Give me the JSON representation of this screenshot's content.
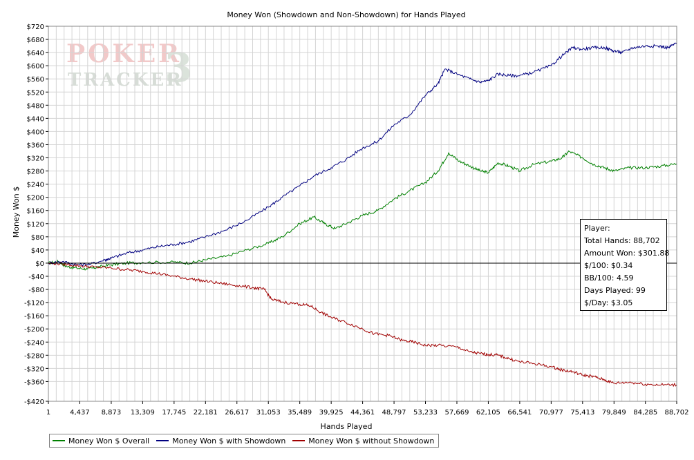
{
  "chart_data": {
    "type": "line",
    "title": "Money Won (Showdown and Non-Showdown) for Hands Played",
    "xlabel": "Hands Played",
    "ylabel": "Money Won $",
    "xlim": [
      1,
      88702
    ],
    "ylim": [
      -420,
      720
    ],
    "x_ticks": [
      1,
      4437,
      8873,
      13309,
      17745,
      22181,
      26617,
      31053,
      35489,
      39925,
      44361,
      48797,
      53233,
      57669,
      62105,
      66541,
      70977,
      75413,
      79849,
      84285,
      88702
    ],
    "x_tick_labels": [
      "1",
      "4,437",
      "8,873",
      "13,309",
      "17,745",
      "22,181",
      "26,617",
      "31,053",
      "35,489",
      "39,925",
      "44,361",
      "48,797",
      "53,233",
      "57,669",
      "62,105",
      "66,541",
      "70,977",
      "75,413",
      "79,849",
      "84,285",
      "88,702"
    ],
    "y_ticks": [
      720,
      680,
      640,
      600,
      560,
      520,
      480,
      440,
      400,
      360,
      320,
      280,
      240,
      200,
      160,
      120,
      80,
      40,
      0,
      -40,
      -80,
      -120,
      -160,
      -200,
      -240,
      -280,
      -320,
      -360,
      -420
    ],
    "y_tick_labels": [
      "$720",
      "$680",
      "$640",
      "$600",
      "$560",
      "$520",
      "$480",
      "$440",
      "$400",
      "$360",
      "$320",
      "$280",
      "$240",
      "$200",
      "$160",
      "$120",
      "$80",
      "$40",
      "$0",
      "-$40",
      "-$80",
      "-$120",
      "-$160",
      "-$200",
      "-$240",
      "-$280",
      "-$320",
      "-$360",
      "-$420"
    ],
    "grid": true,
    "legend_position": "bottom-left",
    "series": [
      {
        "name": "Money Won $ Overall",
        "color": "#008000",
        "points": [
          [
            1,
            0
          ],
          [
            1500,
            5
          ],
          [
            2500,
            -10
          ],
          [
            4000,
            -15
          ],
          [
            5500,
            -18
          ],
          [
            7000,
            -12
          ],
          [
            8873,
            -5
          ],
          [
            11000,
            0
          ],
          [
            13309,
            2
          ],
          [
            17745,
            3
          ],
          [
            20000,
            0
          ],
          [
            22181,
            10
          ],
          [
            25000,
            20
          ],
          [
            28000,
            40
          ],
          [
            31053,
            60
          ],
          [
            33000,
            80
          ],
          [
            35489,
            120
          ],
          [
            37500,
            140
          ],
          [
            39000,
            120
          ],
          [
            40500,
            105
          ],
          [
            42500,
            125
          ],
          [
            44361,
            145
          ],
          [
            46500,
            160
          ],
          [
            48797,
            195
          ],
          [
            51000,
            220
          ],
          [
            53233,
            245
          ],
          [
            55000,
            280
          ],
          [
            56500,
            335
          ],
          [
            58000,
            310
          ],
          [
            59500,
            295
          ],
          [
            61000,
            280
          ],
          [
            62105,
            275
          ],
          [
            63500,
            305
          ],
          [
            65000,
            295
          ],
          [
            66541,
            280
          ],
          [
            68500,
            300
          ],
          [
            70977,
            310
          ],
          [
            72500,
            320
          ],
          [
            73500,
            340
          ],
          [
            75413,
            320
          ],
          [
            77000,
            300
          ],
          [
            78500,
            290
          ],
          [
            79849,
            280
          ],
          [
            82000,
            290
          ],
          [
            84285,
            290
          ],
          [
            86500,
            295
          ],
          [
            88702,
            302
          ]
        ]
      },
      {
        "name": "Money Won $ with Showdown",
        "color": "#000080",
        "points": [
          [
            1,
            0
          ],
          [
            2000,
            5
          ],
          [
            4000,
            -5
          ],
          [
            6000,
            -3
          ],
          [
            8000,
            10
          ],
          [
            8873,
            15
          ],
          [
            11000,
            30
          ],
          [
            13309,
            40
          ],
          [
            15500,
            50
          ],
          [
            17745,
            57
          ],
          [
            20000,
            65
          ],
          [
            22181,
            80
          ],
          [
            25000,
            100
          ],
          [
            28000,
            130
          ],
          [
            31053,
            170
          ],
          [
            33000,
            200
          ],
          [
            35489,
            235
          ],
          [
            37500,
            265
          ],
          [
            39925,
            290
          ],
          [
            42000,
            315
          ],
          [
            44361,
            350
          ],
          [
            46500,
            370
          ],
          [
            48797,
            420
          ],
          [
            51000,
            450
          ],
          [
            53233,
            510
          ],
          [
            55000,
            545
          ],
          [
            56000,
            590
          ],
          [
            57669,
            575
          ],
          [
            59500,
            560
          ],
          [
            61000,
            550
          ],
          [
            62105,
            555
          ],
          [
            63500,
            575
          ],
          [
            65000,
            570
          ],
          [
            66541,
            570
          ],
          [
            68500,
            580
          ],
          [
            70977,
            600
          ],
          [
            72500,
            630
          ],
          [
            74000,
            655
          ],
          [
            75413,
            650
          ],
          [
            77000,
            655
          ],
          [
            78500,
            655
          ],
          [
            79849,
            645
          ],
          [
            81000,
            640
          ],
          [
            82500,
            655
          ],
          [
            84285,
            660
          ],
          [
            86000,
            660
          ],
          [
            87500,
            655
          ],
          [
            88702,
            670
          ]
        ]
      },
      {
        "name": "Money Won $ without Showdown",
        "color": "#a00000",
        "points": [
          [
            1,
            0
          ],
          [
            2000,
            -3
          ],
          [
            4437,
            -8
          ],
          [
            6500,
            -12
          ],
          [
            8873,
            -15
          ],
          [
            11000,
            -20
          ],
          [
            13309,
            -25
          ],
          [
            15500,
            -32
          ],
          [
            17745,
            -40
          ],
          [
            20000,
            -48
          ],
          [
            22181,
            -55
          ],
          [
            24500,
            -62
          ],
          [
            26617,
            -68
          ],
          [
            29000,
            -75
          ],
          [
            30500,
            -80
          ],
          [
            31500,
            -110
          ],
          [
            33000,
            -118
          ],
          [
            35489,
            -125
          ],
          [
            37000,
            -130
          ],
          [
            38500,
            -150
          ],
          [
            39925,
            -165
          ],
          [
            42000,
            -180
          ],
          [
            44361,
            -200
          ],
          [
            46000,
            -215
          ],
          [
            48000,
            -220
          ],
          [
            50000,
            -235
          ],
          [
            51500,
            -240
          ],
          [
            53233,
            -250
          ],
          [
            55000,
            -250
          ],
          [
            57669,
            -255
          ],
          [
            59500,
            -270
          ],
          [
            61000,
            -275
          ],
          [
            62105,
            -278
          ],
          [
            63500,
            -280
          ],
          [
            65000,
            -290
          ],
          [
            66541,
            -300
          ],
          [
            68500,
            -305
          ],
          [
            70977,
            -315
          ],
          [
            72500,
            -325
          ],
          [
            74000,
            -330
          ],
          [
            75413,
            -340
          ],
          [
            77000,
            -345
          ],
          [
            78500,
            -355
          ],
          [
            79849,
            -365
          ],
          [
            82000,
            -362
          ],
          [
            84285,
            -368
          ],
          [
            86500,
            -370
          ],
          [
            88702,
            -370
          ]
        ]
      }
    ]
  },
  "watermark": {
    "line1": "POKER",
    "line2": "TRACKER",
    "number": "3"
  },
  "stats_box": {
    "lines": [
      "Player:",
      "Total Hands: 88,702",
      "Amount Won: $301.88",
      "$/100: $0.34",
      "BB/100: 4.59",
      "Days Played: 99",
      "$/Day: $3.05"
    ]
  },
  "legend": {
    "items": [
      {
        "label": "Money Won $ Overall",
        "color": "#008000"
      },
      {
        "label": "Money Won $ with Showdown",
        "color": "#000080"
      },
      {
        "label": "Money Won $ without Showdown",
        "color": "#a00000"
      }
    ]
  }
}
